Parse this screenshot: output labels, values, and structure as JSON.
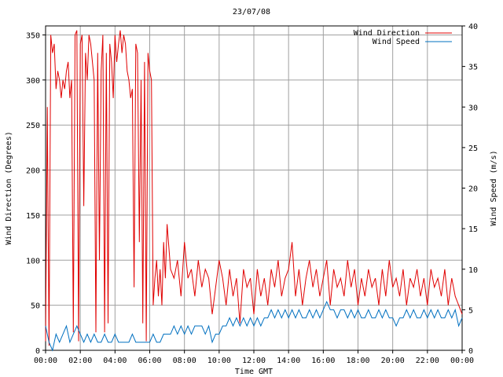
{
  "chart_data": {
    "type": "line",
    "title": "23/07/08",
    "xlabel": "Time GMT",
    "ylabel_left": "Wind Direction (Degrees)",
    "ylabel_right": "Wind Speed (m/s)",
    "x_ticks": [
      "00:00",
      "02:00",
      "04:00",
      "06:00",
      "08:00",
      "10:00",
      "12:00",
      "14:00",
      "16:00",
      "18:00",
      "20:00",
      "22:00",
      "00:00"
    ],
    "y_left_ticks": [
      0,
      50,
      100,
      150,
      200,
      250,
      300,
      350
    ],
    "y_right_ticks": [
      0,
      5,
      10,
      15,
      20,
      25,
      30,
      35,
      40
    ],
    "xlim_hours": [
      0,
      24
    ],
    "ylim_left": [
      0,
      360
    ],
    "ylim_right": [
      0,
      40
    ],
    "grid": true,
    "legend_position": "top-right",
    "series": [
      {
        "name": "Wind Direction",
        "axis": "left",
        "color": "#e00000",
        "hours": [
          0.0,
          0.1,
          0.2,
          0.3,
          0.4,
          0.5,
          0.6,
          0.7,
          0.8,
          0.9,
          1.0,
          1.1,
          1.2,
          1.3,
          1.4,
          1.5,
          1.6,
          1.7,
          1.8,
          1.9,
          2.0,
          2.1,
          2.2,
          2.3,
          2.4,
          2.5,
          2.6,
          2.7,
          2.8,
          2.9,
          3.0,
          3.1,
          3.2,
          3.3,
          3.4,
          3.5,
          3.6,
          3.7,
          3.8,
          3.9,
          4.0,
          4.1,
          4.2,
          4.3,
          4.4,
          4.5,
          4.6,
          4.7,
          4.8,
          4.9,
          5.0,
          5.1,
          5.2,
          5.3,
          5.4,
          5.5,
          5.6,
          5.7,
          5.8,
          5.9,
          6.0,
          6.1,
          6.2,
          6.3,
          6.4,
          6.5,
          6.6,
          6.7,
          6.8,
          6.9,
          7.0,
          7.2,
          7.4,
          7.6,
          7.8,
          8.0,
          8.2,
          8.4,
          8.6,
          8.8,
          9.0,
          9.2,
          9.4,
          9.6,
          9.8,
          10.0,
          10.2,
          10.4,
          10.6,
          10.8,
          11.0,
          11.2,
          11.4,
          11.6,
          11.8,
          12.0,
          12.2,
          12.4,
          12.6,
          12.8,
          13.0,
          13.2,
          13.4,
          13.6,
          13.8,
          14.0,
          14.2,
          14.4,
          14.6,
          14.8,
          15.0,
          15.2,
          15.4,
          15.6,
          15.8,
          16.0,
          16.2,
          16.4,
          16.6,
          16.8,
          17.0,
          17.2,
          17.4,
          17.6,
          17.8,
          18.0,
          18.2,
          18.4,
          18.6,
          18.8,
          19.0,
          19.2,
          19.4,
          19.6,
          19.8,
          20.0,
          20.2,
          20.4,
          20.6,
          20.8,
          21.0,
          21.2,
          21.4,
          21.6,
          21.8,
          22.0,
          22.2,
          22.4,
          22.6,
          22.8,
          23.0,
          23.2,
          23.4,
          23.6,
          23.8,
          24.0
        ],
        "values": [
          10,
          270,
          5,
          350,
          330,
          340,
          290,
          310,
          300,
          280,
          300,
          290,
          310,
          320,
          280,
          300,
          20,
          350,
          355,
          10,
          340,
          350,
          160,
          330,
          300,
          350,
          340,
          320,
          300,
          20,
          330,
          100,
          310,
          350,
          20,
          330,
          30,
          340,
          320,
          280,
          350,
          320,
          340,
          355,
          330,
          350,
          340,
          310,
          300,
          280,
          290,
          70,
          340,
          330,
          120,
          300,
          30,
          320,
          10,
          330,
          310,
          300,
          50,
          80,
          100,
          60,
          90,
          50,
          120,
          80,
          140,
          90,
          80,
          100,
          60,
          120,
          80,
          90,
          60,
          100,
          70,
          90,
          80,
          40,
          70,
          100,
          80,
          50,
          90,
          60,
          80,
          30,
          90,
          70,
          80,
          40,
          90,
          60,
          80,
          50,
          90,
          70,
          100,
          60,
          80,
          90,
          120,
          60,
          90,
          50,
          80,
          100,
          70,
          90,
          60,
          80,
          100,
          50,
          90,
          70,
          80,
          60,
          100,
          70,
          90,
          50,
          80,
          60,
          90,
          70,
          80,
          50,
          90,
          60,
          100,
          70,
          80,
          60,
          90,
          50,
          80,
          70,
          90,
          60,
          80,
          50,
          90,
          70,
          80,
          60,
          90,
          50,
          80,
          60,
          50,
          40
        ]
      },
      {
        "name": "Wind Speed",
        "axis": "right",
        "color": "#0070c0",
        "hours": [
          0.0,
          0.2,
          0.4,
          0.6,
          0.8,
          1.0,
          1.2,
          1.4,
          1.6,
          1.8,
          2.0,
          2.2,
          2.4,
          2.6,
          2.8,
          3.0,
          3.2,
          3.4,
          3.6,
          3.8,
          4.0,
          4.2,
          4.4,
          4.6,
          4.8,
          5.0,
          5.2,
          5.4,
          5.6,
          5.8,
          6.0,
          6.2,
          6.4,
          6.6,
          6.8,
          7.0,
          7.2,
          7.4,
          7.6,
          7.8,
          8.0,
          8.2,
          8.4,
          8.6,
          8.8,
          9.0,
          9.2,
          9.4,
          9.6,
          9.8,
          10.0,
          10.2,
          10.4,
          10.6,
          10.8,
          11.0,
          11.2,
          11.4,
          11.6,
          11.8,
          12.0,
          12.2,
          12.4,
          12.6,
          12.8,
          13.0,
          13.2,
          13.4,
          13.6,
          13.8,
          14.0,
          14.2,
          14.4,
          14.6,
          14.8,
          15.0,
          15.2,
          15.4,
          15.6,
          15.8,
          16.0,
          16.2,
          16.4,
          16.6,
          16.8,
          17.0,
          17.2,
          17.4,
          17.6,
          17.8,
          18.0,
          18.2,
          18.4,
          18.6,
          18.8,
          19.0,
          19.2,
          19.4,
          19.6,
          19.8,
          20.0,
          20.2,
          20.4,
          20.6,
          20.8,
          21.0,
          21.2,
          21.4,
          21.6,
          21.8,
          22.0,
          22.2,
          22.4,
          22.6,
          22.8,
          23.0,
          23.2,
          23.4,
          23.6,
          23.8,
          24.0
        ],
        "values": [
          3,
          1,
          0,
          2,
          1,
          2,
          3,
          1,
          2,
          3,
          2,
          1,
          2,
          1,
          2,
          1,
          1,
          2,
          1,
          1,
          2,
          1,
          1,
          1,
          1,
          2,
          1,
          1,
          1,
          1,
          1,
          2,
          1,
          1,
          2,
          2,
          2,
          3,
          2,
          3,
          2,
          3,
          2,
          3,
          3,
          3,
          2,
          3,
          1,
          2,
          2,
          3,
          3,
          4,
          3,
          4,
          3,
          4,
          3,
          4,
          3,
          4,
          3,
          4,
          4,
          5,
          4,
          5,
          4,
          5,
          4,
          5,
          4,
          5,
          4,
          4,
          5,
          4,
          5,
          4,
          5,
          6,
          5,
          5,
          4,
          5,
          5,
          4,
          5,
          4,
          5,
          4,
          4,
          5,
          4,
          4,
          5,
          4,
          5,
          4,
          4,
          3,
          4,
          4,
          5,
          4,
          5,
          4,
          4,
          5,
          4,
          5,
          4,
          5,
          4,
          4,
          5,
          4,
          5,
          3,
          4
        ]
      }
    ]
  }
}
